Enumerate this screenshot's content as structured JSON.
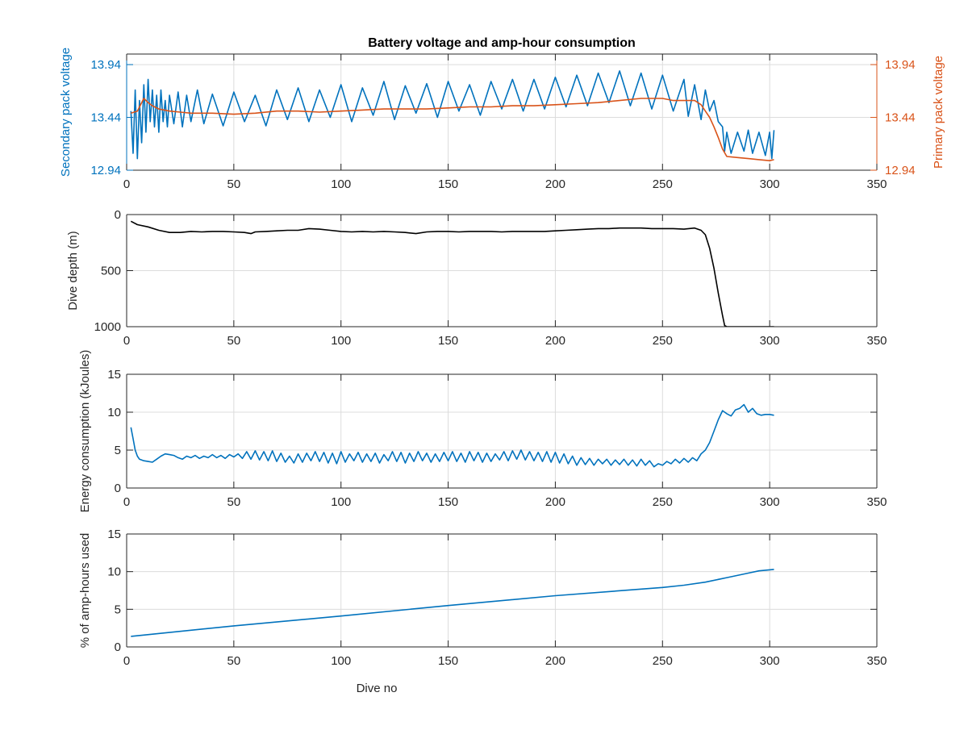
{
  "chart_data": [
    {
      "type": "line",
      "title": "Battery voltage and amp-hour consumption",
      "xlabel": "",
      "ylabel": "Secondary pack voltage",
      "ylabel_right": "Primary pack voltage",
      "xlim": [
        0,
        350
      ],
      "ylim": [
        12.94,
        14.04
      ],
      "ylim_right": [
        12.94,
        14.04
      ],
      "xticks": [
        0,
        50,
        100,
        150,
        200,
        250,
        300,
        350
      ],
      "yticks": [
        12.94,
        13.44,
        13.94
      ],
      "yticks_right": [
        12.94,
        13.44,
        13.94
      ],
      "ytick_labels": [
        "12.94",
        "13.44",
        "13.94"
      ],
      "grid": true,
      "colors": {
        "left_axis": "#0072BD",
        "right_axis": "#D95319"
      },
      "series": [
        {
          "axis": "left",
          "color": "#0072BD",
          "x": [
            2,
            3,
            4,
            5,
            6,
            7,
            8,
            9,
            10,
            11,
            12,
            13,
            14,
            15,
            16,
            17,
            18,
            19,
            20,
            22,
            24,
            26,
            28,
            30,
            33,
            36,
            40,
            45,
            50,
            55,
            60,
            65,
            70,
            75,
            80,
            85,
            90,
            95,
            100,
            105,
            110,
            115,
            120,
            125,
            130,
            135,
            140,
            145,
            150,
            155,
            160,
            165,
            170,
            175,
            180,
            185,
            190,
            195,
            200,
            205,
            210,
            215,
            220,
            225,
            230,
            235,
            240,
            245,
            250,
            255,
            260,
            262,
            265,
            268,
            270,
            272,
            274,
            276,
            278,
            279,
            280,
            282,
            285,
            288,
            290,
            292,
            295,
            298,
            300,
            301,
            302
          ],
          "y": [
            13.5,
            13.1,
            13.7,
            13.05,
            13.6,
            13.2,
            13.75,
            13.3,
            13.8,
            13.4,
            13.7,
            13.35,
            13.65,
            13.3,
            13.7,
            13.4,
            13.6,
            13.35,
            13.65,
            13.38,
            13.68,
            13.35,
            13.65,
            13.4,
            13.7,
            13.38,
            13.66,
            13.36,
            13.68,
            13.4,
            13.65,
            13.36,
            13.7,
            13.42,
            13.72,
            13.4,
            13.7,
            13.44,
            13.75,
            13.4,
            13.72,
            13.46,
            13.78,
            13.42,
            13.74,
            13.48,
            13.76,
            13.44,
            13.78,
            13.5,
            13.75,
            13.46,
            13.78,
            13.52,
            13.8,
            13.5,
            13.8,
            13.52,
            13.82,
            13.54,
            13.84,
            13.55,
            13.86,
            13.58,
            13.88,
            13.55,
            13.86,
            13.52,
            13.84,
            13.5,
            13.8,
            13.45,
            13.75,
            13.42,
            13.7,
            13.5,
            13.6,
            13.4,
            13.35,
            13.12,
            13.3,
            13.1,
            13.3,
            13.12,
            13.32,
            13.1,
            13.3,
            13.08,
            13.3,
            13.05,
            13.32
          ]
        },
        {
          "axis": "right",
          "color": "#D95319",
          "x": [
            2,
            5,
            8,
            10,
            12,
            15,
            20,
            25,
            30,
            40,
            50,
            60,
            70,
            80,
            90,
            100,
            110,
            120,
            130,
            140,
            150,
            160,
            170,
            180,
            190,
            200,
            210,
            220,
            230,
            240,
            250,
            255,
            260,
            265,
            268,
            270,
            272,
            274,
            276,
            278,
            280,
            285,
            290,
            295,
            300,
            302
          ],
          "y": [
            13.48,
            13.5,
            13.62,
            13.58,
            13.55,
            13.52,
            13.5,
            13.49,
            13.48,
            13.48,
            13.47,
            13.48,
            13.5,
            13.5,
            13.49,
            13.5,
            13.51,
            13.52,
            13.52,
            13.52,
            13.53,
            13.54,
            13.54,
            13.55,
            13.55,
            13.56,
            13.57,
            13.58,
            13.6,
            13.62,
            13.62,
            13.6,
            13.6,
            13.6,
            13.56,
            13.5,
            13.44,
            13.35,
            13.25,
            13.14,
            13.07,
            13.06,
            13.05,
            13.04,
            13.03,
            13.04
          ]
        }
      ]
    },
    {
      "type": "line",
      "title": "",
      "xlabel": "",
      "ylabel": "Dive depth (m)",
      "xlim": [
        0,
        350
      ],
      "ylim": [
        0,
        1000
      ],
      "y_reversed": true,
      "xticks": [
        0,
        50,
        100,
        150,
        200,
        250,
        300,
        350
      ],
      "yticks": [
        0,
        500,
        1000
      ],
      "grid": true,
      "series": [
        {
          "color": "#000000",
          "x": [
            2,
            5,
            10,
            15,
            20,
            25,
            30,
            35,
            40,
            45,
            50,
            55,
            58,
            60,
            65,
            70,
            75,
            80,
            85,
            90,
            95,
            100,
            105,
            110,
            115,
            120,
            125,
            130,
            135,
            140,
            145,
            150,
            155,
            160,
            165,
            170,
            175,
            180,
            185,
            190,
            195,
            200,
            205,
            210,
            215,
            220,
            225,
            230,
            235,
            240,
            245,
            250,
            255,
            260,
            265,
            268,
            270,
            272,
            274,
            276,
            278,
            279,
            280,
            285,
            290,
            295,
            300,
            302
          ],
          "y": [
            60,
            90,
            110,
            140,
            160,
            160,
            150,
            155,
            150,
            150,
            155,
            160,
            170,
            155,
            150,
            145,
            140,
            140,
            125,
            130,
            140,
            150,
            155,
            150,
            155,
            150,
            155,
            160,
            170,
            155,
            150,
            150,
            155,
            150,
            150,
            150,
            155,
            150,
            150,
            150,
            150,
            145,
            140,
            135,
            130,
            125,
            125,
            120,
            120,
            120,
            125,
            125,
            125,
            130,
            120,
            140,
            180,
            300,
            480,
            700,
            900,
            990,
            1000,
            1000,
            1000,
            1000,
            1000,
            1000
          ]
        }
      ]
    },
    {
      "type": "line",
      "title": "",
      "xlabel": "",
      "ylabel": "Energy consumption (kJoules)",
      "xlim": [
        0,
        350
      ],
      "ylim": [
        0,
        15
      ],
      "xticks": [
        0,
        50,
        100,
        150,
        200,
        250,
        300,
        350
      ],
      "yticks": [
        0,
        5,
        10,
        15
      ],
      "grid": true,
      "series": [
        {
          "color": "#0072BD",
          "x": [
            2,
            3,
            4,
            5,
            6,
            8,
            10,
            12,
            14,
            16,
            18,
            20,
            22,
            24,
            26,
            28,
            30,
            32,
            34,
            36,
            38,
            40,
            42,
            44,
            46,
            48,
            50,
            52,
            54,
            56,
            58,
            60,
            62,
            64,
            66,
            68,
            70,
            72,
            74,
            76,
            78,
            80,
            82,
            84,
            86,
            88,
            90,
            92,
            94,
            96,
            98,
            100,
            102,
            104,
            106,
            108,
            110,
            112,
            114,
            116,
            118,
            120,
            122,
            124,
            126,
            128,
            130,
            132,
            134,
            136,
            138,
            140,
            142,
            144,
            146,
            148,
            150,
            152,
            154,
            156,
            158,
            160,
            162,
            164,
            166,
            168,
            170,
            172,
            174,
            176,
            178,
            180,
            182,
            184,
            186,
            188,
            190,
            192,
            194,
            196,
            198,
            200,
            202,
            204,
            206,
            208,
            210,
            212,
            214,
            216,
            218,
            220,
            222,
            224,
            226,
            228,
            230,
            232,
            234,
            236,
            238,
            240,
            242,
            244,
            246,
            248,
            250,
            252,
            254,
            256,
            258,
            260,
            262,
            264,
            266,
            268,
            270,
            272,
            274,
            276,
            278,
            280,
            282,
            284,
            286,
            288,
            290,
            292,
            294,
            296,
            298,
            300,
            302
          ],
          "y": [
            8,
            6.5,
            5,
            4.2,
            3.8,
            3.6,
            3.5,
            3.4,
            3.8,
            4.2,
            4.5,
            4.4,
            4.3,
            4.0,
            3.8,
            4.2,
            4.0,
            4.3,
            3.9,
            4.2,
            4.0,
            4.4,
            4.0,
            4.3,
            3.9,
            4.4,
            4.1,
            4.5,
            3.9,
            4.8,
            3.8,
            4.9,
            3.7,
            4.8,
            3.6,
            4.9,
            3.5,
            4.6,
            3.4,
            4.2,
            3.3,
            4.5,
            3.4,
            4.6,
            3.6,
            4.8,
            3.5,
            4.7,
            3.3,
            4.6,
            3.2,
            4.8,
            3.4,
            4.5,
            3.6,
            4.7,
            3.4,
            4.5,
            3.5,
            4.6,
            3.3,
            4.4,
            3.6,
            4.8,
            3.5,
            4.7,
            3.3,
            4.6,
            3.5,
            4.8,
            3.6,
            4.6,
            3.4,
            4.5,
            3.5,
            4.7,
            3.6,
            4.8,
            3.5,
            4.6,
            3.4,
            4.8,
            3.6,
            4.7,
            3.4,
            4.6,
            3.5,
            4.5,
            3.7,
            4.8,
            3.6,
            4.9,
            3.8,
            5.0,
            3.7,
            4.8,
            3.6,
            4.7,
            3.5,
            4.8,
            3.4,
            4.7,
            3.3,
            4.5,
            3.2,
            4.2,
            3.0,
            4.0,
            3.1,
            3.9,
            3.0,
            3.8,
            3.2,
            3.8,
            3.0,
            3.7,
            3.1,
            3.8,
            3.0,
            3.7,
            2.9,
            3.8,
            3.0,
            3.6,
            2.8,
            3.2,
            3.0,
            3.5,
            3.2,
            3.8,
            3.3,
            3.9,
            3.4,
            4.0,
            3.6,
            4.5,
            5.0,
            6.0,
            7.5,
            9.0,
            10.2,
            9.8,
            9.5,
            10.3,
            10.5,
            11.0,
            10.0,
            10.5,
            9.8,
            9.6,
            9.7,
            9.7,
            9.6
          ]
        }
      ]
    },
    {
      "type": "line",
      "title": "",
      "xlabel": "Dive no",
      "ylabel": "% of amp-hours used",
      "xlim": [
        0,
        350
      ],
      "ylim": [
        0,
        15
      ],
      "xticks": [
        0,
        50,
        100,
        150,
        200,
        250,
        300,
        350
      ],
      "yticks": [
        0,
        5,
        10,
        15
      ],
      "grid": true,
      "series": [
        {
          "color": "#0072BD",
          "x": [
            2,
            50,
            100,
            150,
            200,
            250,
            260,
            270,
            280,
            290,
            295,
            302
          ],
          "y": [
            1.4,
            2.8,
            4.1,
            5.5,
            6.8,
            7.9,
            8.2,
            8.6,
            9.2,
            9.8,
            10.1,
            10.3
          ]
        }
      ]
    }
  ]
}
